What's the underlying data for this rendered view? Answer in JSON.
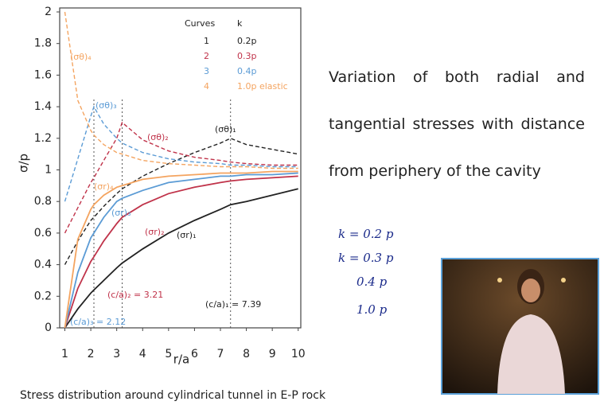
{
  "chart_data": {
    "type": "line",
    "x_label": "r/a",
    "y_label": "σ/p",
    "caption": "Stress distribution around cylindrical tunnel in E-P rock",
    "x": [
      1,
      1.5,
      2,
      2.12,
      2.5,
      3,
      3.21,
      4,
      5,
      6,
      7,
      7.39,
      8,
      9,
      10
    ],
    "xlim": [
      0.8,
      10.1
    ],
    "ylim": [
      0,
      2
    ],
    "xticks": [
      1,
      2,
      3,
      4,
      5,
      6,
      7,
      8,
      9,
      10
    ],
    "yticks": [
      0,
      0.2,
      0.4,
      0.6,
      0.8,
      1,
      1.2,
      1.4,
      1.6,
      1.8,
      2
    ],
    "series": [
      {
        "name": "(σθ)₁",
        "color": "#222222",
        "style": "dashed",
        "values": [
          0.4,
          0.55,
          0.68,
          0.7,
          0.77,
          0.85,
          0.88,
          0.96,
          1.04,
          1.11,
          1.17,
          1.2,
          1.16,
          1.13,
          1.1
        ]
      },
      {
        "name": "(σθ)₂",
        "color": "#c0334a",
        "style": "dashed",
        "values": [
          0.6,
          0.76,
          0.92,
          0.95,
          1.06,
          1.2,
          1.3,
          1.19,
          1.12,
          1.08,
          1.06,
          1.05,
          1.04,
          1.03,
          1.03
        ]
      },
      {
        "name": "(σθ)₃",
        "color": "#5b9bd5",
        "style": "dashed",
        "values": [
          0.8,
          1.07,
          1.34,
          1.4,
          1.29,
          1.2,
          1.17,
          1.11,
          1.07,
          1.05,
          1.04,
          1.03,
          1.03,
          1.02,
          1.02
        ]
      },
      {
        "name": "(σθ)₄",
        "color": "#f4a460",
        "style": "dashed",
        "values": [
          2,
          1.44,
          1.25,
          1.22,
          1.16,
          1.11,
          1.1,
          1.06,
          1.04,
          1.03,
          1.02,
          1.02,
          1.02,
          1.01,
          1.01
        ]
      },
      {
        "name": "(σr)₁",
        "color": "#222222",
        "style": "solid",
        "values": [
          0,
          0.12,
          0.22,
          0.24,
          0.3,
          0.38,
          0.41,
          0.5,
          0.6,
          0.68,
          0.75,
          0.78,
          0.8,
          0.84,
          0.88
        ]
      },
      {
        "name": "(σr)₂",
        "color": "#c0334a",
        "style": "solid",
        "values": [
          0,
          0.25,
          0.42,
          0.45,
          0.55,
          0.66,
          0.7,
          0.78,
          0.85,
          0.89,
          0.92,
          0.93,
          0.94,
          0.95,
          0.96
        ]
      },
      {
        "name": "(σr)₃",
        "color": "#5b9bd5",
        "style": "solid",
        "values": [
          0,
          0.35,
          0.57,
          0.6,
          0.7,
          0.8,
          0.82,
          0.87,
          0.92,
          0.94,
          0.96,
          0.96,
          0.97,
          0.97,
          0.98
        ]
      },
      {
        "name": "(σr)₄",
        "color": "#f4a460",
        "style": "solid",
        "values": [
          0,
          0.56,
          0.75,
          0.78,
          0.84,
          0.89,
          0.9,
          0.94,
          0.96,
          0.97,
          0.98,
          0.98,
          0.98,
          0.99,
          0.99
        ]
      }
    ],
    "legend": {
      "header": [
        "Curves",
        "k"
      ],
      "rows": [
        [
          "1",
          "0.2p"
        ],
        [
          "2",
          "0.3p"
        ],
        [
          "3",
          "0.4p"
        ],
        [
          "4",
          "1.0p elastic"
        ]
      ]
    },
    "annotations": [
      {
        "text": "(c/a)₃ = 2.12",
        "x": 2.12,
        "color": "#5b9bd5"
      },
      {
        "text": "(c/a)₂ = 3.21",
        "x": 3.21,
        "color": "#c0334a"
      },
      {
        "text": "(c/a)₁ = 7.39",
        "x": 7.39,
        "color": "#222222"
      }
    ]
  },
  "description": "Variation of both radial and tangential stresses with distance from periphery of the cavity",
  "notes": [
    "k = 0.2 p",
    "k = 0.3 p",
    "0.4 p",
    "1.0 p"
  ]
}
